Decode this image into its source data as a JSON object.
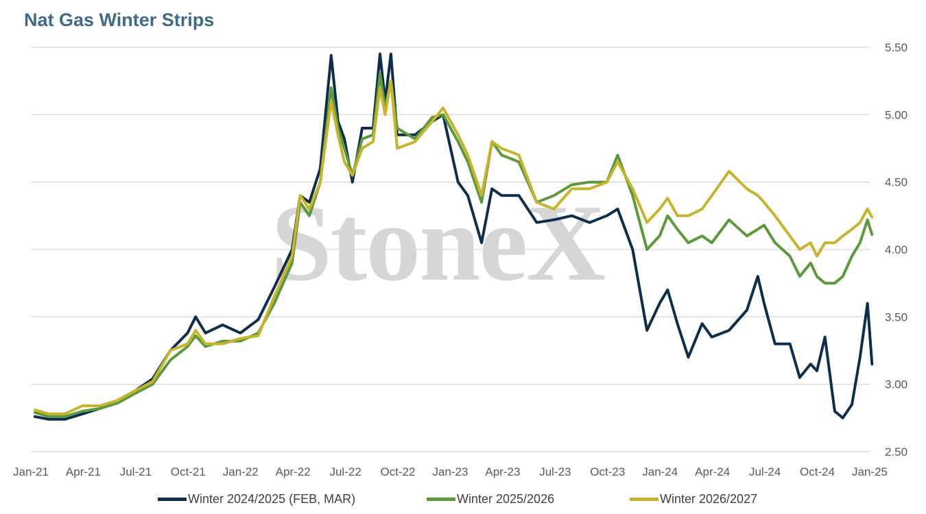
{
  "chart_data": {
    "type": "line",
    "title": "Nat Gas Winter Strips",
    "watermark": "StoneX",
    "x_ticks": [
      "Jan-21",
      "Apr-21",
      "Jul-21",
      "Oct-21",
      "Jan-22",
      "Apr-22",
      "Jul-22",
      "Oct-22",
      "Jan-23",
      "Apr-23",
      "Jul-23",
      "Oct-23",
      "Jan-24",
      "Apr-24",
      "Jul-24",
      "Oct-24",
      "Jan-25"
    ],
    "y_ticks": [
      "2.50",
      "3.00",
      "3.50",
      "4.00",
      "4.50",
      "5.00",
      "5.50"
    ],
    "ylim": [
      2.5,
      5.5
    ],
    "xlim": [
      "2021-01",
      "2025-01"
    ],
    "grid": "horizontal",
    "legend_position": "bottom",
    "series": [
      {
        "name": "Winter 2024/2025 (FEB, MAR)",
        "color": "#0f2d4d",
        "points": [
          [
            "2021-01-08",
            2.76
          ],
          [
            "2021-02-01",
            2.74
          ],
          [
            "2021-03-01",
            2.74
          ],
          [
            "2021-04-01",
            2.78
          ],
          [
            "2021-05-01",
            2.82
          ],
          [
            "2021-06-01",
            2.88
          ],
          [
            "2021-07-01",
            2.95
          ],
          [
            "2021-08-01",
            3.04
          ],
          [
            "2021-09-01",
            3.25
          ],
          [
            "2021-10-01",
            3.38
          ],
          [
            "2021-10-15",
            3.5
          ],
          [
            "2021-11-01",
            3.38
          ],
          [
            "2021-12-01",
            3.44
          ],
          [
            "2022-01-01",
            3.38
          ],
          [
            "2022-02-01",
            3.48
          ],
          [
            "2022-03-01",
            3.72
          ],
          [
            "2022-04-01",
            4.0
          ],
          [
            "2022-04-15",
            4.4
          ],
          [
            "2022-05-01",
            4.35
          ],
          [
            "2022-05-20",
            4.6
          ],
          [
            "2022-06-08",
            5.44
          ],
          [
            "2022-06-20",
            4.95
          ],
          [
            "2022-07-01",
            4.82
          ],
          [
            "2022-07-15",
            4.5
          ],
          [
            "2022-08-01",
            4.9
          ],
          [
            "2022-08-20",
            4.9
          ],
          [
            "2022-09-01",
            5.45
          ],
          [
            "2022-09-10",
            5.1
          ],
          [
            "2022-09-20",
            5.45
          ],
          [
            "2022-10-01",
            4.85
          ],
          [
            "2022-11-01",
            4.85
          ],
          [
            "2022-12-01",
            4.95
          ],
          [
            "2022-12-20",
            5.0
          ],
          [
            "2023-01-15",
            4.5
          ],
          [
            "2023-02-01",
            4.4
          ],
          [
            "2023-02-25",
            4.05
          ],
          [
            "2023-03-15",
            4.45
          ],
          [
            "2023-04-01",
            4.4
          ],
          [
            "2023-05-01",
            4.4
          ],
          [
            "2023-06-01",
            4.2
          ],
          [
            "2023-07-01",
            4.22
          ],
          [
            "2023-08-01",
            4.25
          ],
          [
            "2023-09-01",
            4.2
          ],
          [
            "2023-10-01",
            4.25
          ],
          [
            "2023-10-20",
            4.3
          ],
          [
            "2023-11-15",
            4.0
          ],
          [
            "2023-12-10",
            3.4
          ],
          [
            "2024-01-01",
            3.6
          ],
          [
            "2024-01-15",
            3.7
          ],
          [
            "2024-02-01",
            3.45
          ],
          [
            "2024-02-20",
            3.2
          ],
          [
            "2024-03-15",
            3.45
          ],
          [
            "2024-04-01",
            3.35
          ],
          [
            "2024-05-01",
            3.4
          ],
          [
            "2024-06-01",
            3.55
          ],
          [
            "2024-06-20",
            3.8
          ],
          [
            "2024-07-01",
            3.6
          ],
          [
            "2024-07-20",
            3.3
          ],
          [
            "2024-08-15",
            3.3
          ],
          [
            "2024-09-01",
            3.05
          ],
          [
            "2024-09-20",
            3.15
          ],
          [
            "2024-10-01",
            3.1
          ],
          [
            "2024-10-15",
            3.35
          ],
          [
            "2024-11-01",
            2.8
          ],
          [
            "2024-11-15",
            2.75
          ],
          [
            "2024-12-01",
            2.85
          ],
          [
            "2024-12-15",
            3.2
          ],
          [
            "2024-12-28",
            3.6
          ],
          [
            "2025-01-05",
            3.15
          ]
        ]
      },
      {
        "name": "Winter 2025/2026",
        "color": "#5a9a3c",
        "points": [
          [
            "2021-01-08",
            2.79
          ],
          [
            "2021-02-01",
            2.76
          ],
          [
            "2021-03-01",
            2.76
          ],
          [
            "2021-04-01",
            2.8
          ],
          [
            "2021-05-01",
            2.82
          ],
          [
            "2021-06-01",
            2.86
          ],
          [
            "2021-07-01",
            2.93
          ],
          [
            "2021-08-01",
            3.0
          ],
          [
            "2021-09-01",
            3.18
          ],
          [
            "2021-10-01",
            3.28
          ],
          [
            "2021-10-15",
            3.36
          ],
          [
            "2021-11-01",
            3.28
          ],
          [
            "2021-12-01",
            3.32
          ],
          [
            "2022-01-01",
            3.32
          ],
          [
            "2022-02-01",
            3.38
          ],
          [
            "2022-03-01",
            3.6
          ],
          [
            "2022-04-01",
            3.9
          ],
          [
            "2022-04-15",
            4.35
          ],
          [
            "2022-05-01",
            4.25
          ],
          [
            "2022-05-20",
            4.5
          ],
          [
            "2022-06-08",
            5.2
          ],
          [
            "2022-06-20",
            4.9
          ],
          [
            "2022-07-01",
            4.75
          ],
          [
            "2022-07-15",
            4.55
          ],
          [
            "2022-08-01",
            4.82
          ],
          [
            "2022-08-20",
            4.85
          ],
          [
            "2022-09-01",
            5.3
          ],
          [
            "2022-09-10",
            5.05
          ],
          [
            "2022-09-20",
            5.25
          ],
          [
            "2022-10-01",
            4.9
          ],
          [
            "2022-11-01",
            4.82
          ],
          [
            "2022-12-01",
            4.98
          ],
          [
            "2022-12-20",
            5.0
          ],
          [
            "2023-01-15",
            4.8
          ],
          [
            "2023-02-01",
            4.65
          ],
          [
            "2023-02-25",
            4.35
          ],
          [
            "2023-03-15",
            4.8
          ],
          [
            "2023-04-01",
            4.7
          ],
          [
            "2023-05-01",
            4.65
          ],
          [
            "2023-06-01",
            4.35
          ],
          [
            "2023-07-01",
            4.4
          ],
          [
            "2023-08-01",
            4.48
          ],
          [
            "2023-09-01",
            4.5
          ],
          [
            "2023-10-01",
            4.5
          ],
          [
            "2023-10-20",
            4.7
          ],
          [
            "2023-11-15",
            4.4
          ],
          [
            "2023-12-10",
            4.0
          ],
          [
            "2024-01-01",
            4.1
          ],
          [
            "2024-01-15",
            4.25
          ],
          [
            "2024-02-01",
            4.15
          ],
          [
            "2024-02-20",
            4.05
          ],
          [
            "2024-03-15",
            4.1
          ],
          [
            "2024-04-01",
            4.05
          ],
          [
            "2024-05-01",
            4.22
          ],
          [
            "2024-06-01",
            4.1
          ],
          [
            "2024-06-20",
            4.15
          ],
          [
            "2024-07-01",
            4.18
          ],
          [
            "2024-07-20",
            4.05
          ],
          [
            "2024-08-15",
            3.95
          ],
          [
            "2024-09-01",
            3.8
          ],
          [
            "2024-09-20",
            3.9
          ],
          [
            "2024-10-01",
            3.8
          ],
          [
            "2024-10-15",
            3.75
          ],
          [
            "2024-11-01",
            3.75
          ],
          [
            "2024-11-15",
            3.8
          ],
          [
            "2024-12-01",
            3.95
          ],
          [
            "2024-12-15",
            4.05
          ],
          [
            "2024-12-28",
            4.22
          ],
          [
            "2025-01-05",
            4.11
          ]
        ]
      },
      {
        "name": "Winter 2026/2027",
        "color": "#c8b42c",
        "points": [
          [
            "2021-01-08",
            2.81
          ],
          [
            "2021-02-01",
            2.78
          ],
          [
            "2021-03-01",
            2.78
          ],
          [
            "2021-04-01",
            2.84
          ],
          [
            "2021-05-01",
            2.84
          ],
          [
            "2021-06-01",
            2.88
          ],
          [
            "2021-07-01",
            2.95
          ],
          [
            "2021-08-01",
            3.02
          ],
          [
            "2021-09-01",
            3.25
          ],
          [
            "2021-10-01",
            3.3
          ],
          [
            "2021-10-15",
            3.4
          ],
          [
            "2021-11-01",
            3.3
          ],
          [
            "2021-12-01",
            3.3
          ],
          [
            "2022-01-01",
            3.34
          ],
          [
            "2022-02-01",
            3.36
          ],
          [
            "2022-03-01",
            3.65
          ],
          [
            "2022-04-01",
            3.95
          ],
          [
            "2022-04-15",
            4.4
          ],
          [
            "2022-05-01",
            4.3
          ],
          [
            "2022-05-20",
            4.5
          ],
          [
            "2022-06-08",
            5.1
          ],
          [
            "2022-06-20",
            4.85
          ],
          [
            "2022-07-01",
            4.65
          ],
          [
            "2022-07-15",
            4.55
          ],
          [
            "2022-08-01",
            4.75
          ],
          [
            "2022-08-20",
            4.8
          ],
          [
            "2022-09-01",
            5.2
          ],
          [
            "2022-09-10",
            5.0
          ],
          [
            "2022-09-20",
            5.25
          ],
          [
            "2022-10-01",
            4.75
          ],
          [
            "2022-11-01",
            4.8
          ],
          [
            "2022-12-01",
            4.95
          ],
          [
            "2022-12-20",
            5.05
          ],
          [
            "2023-01-15",
            4.85
          ],
          [
            "2023-02-01",
            4.7
          ],
          [
            "2023-02-25",
            4.4
          ],
          [
            "2023-03-15",
            4.8
          ],
          [
            "2023-04-01",
            4.75
          ],
          [
            "2023-05-01",
            4.7
          ],
          [
            "2023-06-01",
            4.35
          ],
          [
            "2023-07-01",
            4.3
          ],
          [
            "2023-08-01",
            4.45
          ],
          [
            "2023-09-01",
            4.45
          ],
          [
            "2023-10-01",
            4.5
          ],
          [
            "2023-10-20",
            4.65
          ],
          [
            "2023-11-15",
            4.45
          ],
          [
            "2023-12-10",
            4.2
          ],
          [
            "2024-01-01",
            4.3
          ],
          [
            "2024-01-15",
            4.38
          ],
          [
            "2024-02-01",
            4.25
          ],
          [
            "2024-02-20",
            4.25
          ],
          [
            "2024-03-15",
            4.3
          ],
          [
            "2024-04-01",
            4.4
          ],
          [
            "2024-05-01",
            4.58
          ],
          [
            "2024-06-01",
            4.45
          ],
          [
            "2024-06-20",
            4.4
          ],
          [
            "2024-07-01",
            4.35
          ],
          [
            "2024-07-20",
            4.25
          ],
          [
            "2024-08-15",
            4.1
          ],
          [
            "2024-09-01",
            4.0
          ],
          [
            "2024-09-20",
            4.05
          ],
          [
            "2024-10-01",
            3.95
          ],
          [
            "2024-10-15",
            4.05
          ],
          [
            "2024-11-01",
            4.05
          ],
          [
            "2024-11-15",
            4.1
          ],
          [
            "2024-12-01",
            4.15
          ],
          [
            "2024-12-15",
            4.2
          ],
          [
            "2024-12-28",
            4.3
          ],
          [
            "2025-01-05",
            4.24
          ]
        ]
      }
    ]
  }
}
